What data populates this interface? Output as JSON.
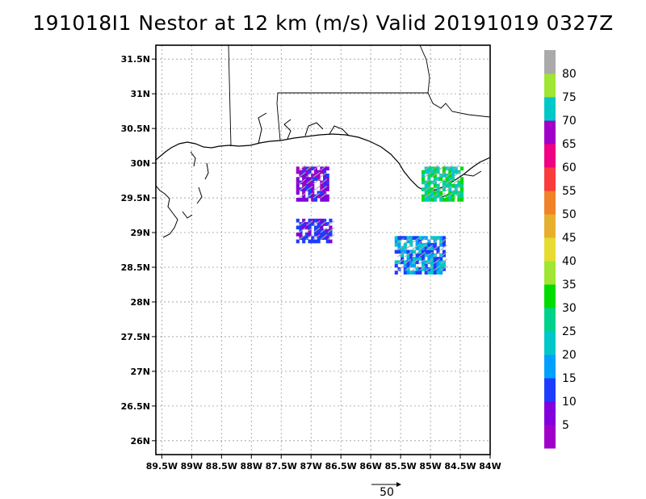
{
  "title": "191018I1 Nestor at 12 km (m/s) Valid 20191019 0327Z",
  "map": {
    "lon_range": [
      -89.6,
      -84.0
    ],
    "lat_range": [
      25.8,
      31.7
    ],
    "lon_ticks": [
      {
        "value": -89.5,
        "label": "89.5W"
      },
      {
        "value": -89,
        "label": "89W"
      },
      {
        "value": -88.5,
        "label": "88.5W"
      },
      {
        "value": -88,
        "label": "88W"
      },
      {
        "value": -87.5,
        "label": "87.5W"
      },
      {
        "value": -87,
        "label": "87W"
      },
      {
        "value": -86.5,
        "label": "86.5W"
      },
      {
        "value": -86,
        "label": "86W"
      },
      {
        "value": -85.5,
        "label": "85.5W"
      },
      {
        "value": -85,
        "label": "85W"
      },
      {
        "value": -84.5,
        "label": "84.5W"
      },
      {
        "value": -84,
        "label": "84W"
      }
    ],
    "lat_ticks": [
      {
        "value": 31.5,
        "label": "31.5N"
      },
      {
        "value": 31,
        "label": "31N"
      },
      {
        "value": 30.5,
        "label": "30.5N"
      },
      {
        "value": 30,
        "label": "30N"
      },
      {
        "value": 29.5,
        "label": "29.5N"
      },
      {
        "value": 29,
        "label": "29N"
      },
      {
        "value": 28.5,
        "label": "28.5N"
      },
      {
        "value": 28,
        "label": "28N"
      },
      {
        "value": 27.5,
        "label": "27.5N"
      },
      {
        "value": 27,
        "label": "27N"
      },
      {
        "value": 26.5,
        "label": "26.5N"
      },
      {
        "value": 26,
        "label": "26N"
      }
    ],
    "grid": true,
    "wind_patches": [
      {
        "name": "patch-west-north",
        "lon": [
          -87.25,
          -86.75
        ],
        "lat": [
          29.45,
          29.95
        ],
        "speed_range": [
          0,
          15
        ]
      },
      {
        "name": "patch-west-south",
        "lon": [
          -87.25,
          -86.7
        ],
        "lat": [
          28.85,
          29.2
        ],
        "speed_range": [
          8,
          15
        ]
      },
      {
        "name": "patch-east-north",
        "lon": [
          -85.15,
          -84.5
        ],
        "lat": [
          29.45,
          29.95
        ],
        "speed_range": [
          20,
          35
        ]
      },
      {
        "name": "patch-southeast",
        "lon": [
          -85.6,
          -84.8
        ],
        "lat": [
          28.4,
          28.95
        ],
        "speed_range": [
          10,
          25
        ]
      }
    ]
  },
  "colorbar": {
    "colors": [
      "#a000c8",
      "#8200dc",
      "#1e3cff",
      "#00a0ff",
      "#00c8c8",
      "#00d28c",
      "#00dc00",
      "#a0e632",
      "#e6dc32",
      "#e6af2d",
      "#f08228",
      "#fa3c3c",
      "#f00082",
      "#a000c8",
      "#00c8c8",
      "#a0e632",
      "#aaaaaa"
    ],
    "labels": [
      "5",
      "10",
      "15",
      "20",
      "25",
      "30",
      "35",
      "40",
      "45",
      "50",
      "55",
      "60",
      "65",
      "70",
      "75",
      "80"
    ]
  },
  "reference_vector": {
    "label": "50"
  }
}
